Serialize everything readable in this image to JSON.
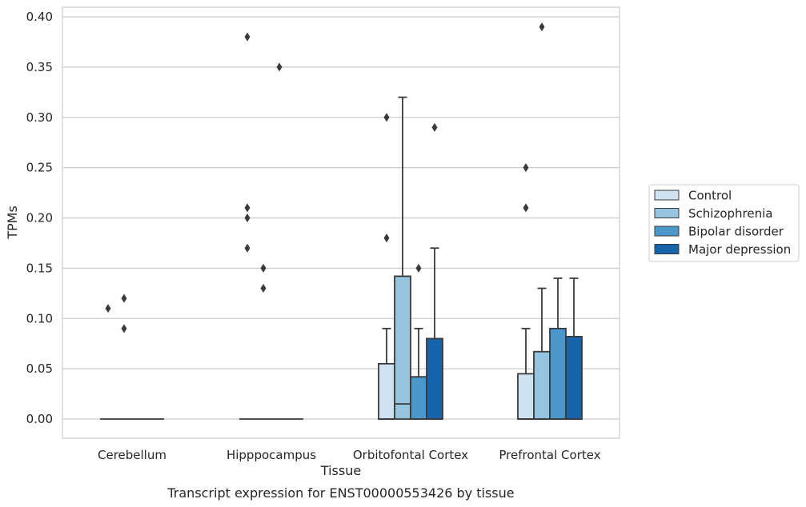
{
  "chart_data": {
    "type": "box",
    "xlabel": "Tissue",
    "ylabel": "TPMs",
    "caption": "Transcript expression for ENST00000553426 by tissue",
    "categories": [
      "Cerebellum",
      "Hipppocampus",
      "Orbitofontal Cortex",
      "Prefrontal Cortex"
    ],
    "ylim": [
      -0.02,
      0.41
    ],
    "yticks": [
      "0.00",
      "0.05",
      "0.10",
      "0.15",
      "0.20",
      "0.25",
      "0.30",
      "0.35",
      "0.40"
    ],
    "grid": "horizontal",
    "legend_position": "right",
    "colors": [
      "#d0e1f2",
      "#94c4df",
      "#4a98c9",
      "#1764ab"
    ],
    "series": [
      {
        "name": "Control",
        "boxes": [
          {
            "q1": 0,
            "median": 0,
            "q3": 0,
            "whisker_low": 0,
            "whisker_high": 0,
            "outliers": [
              0.11
            ]
          },
          {
            "q1": 0,
            "median": 0,
            "q3": 0,
            "whisker_low": 0,
            "whisker_high": 0,
            "outliers": [
              0.21,
              0.2,
              0.17,
              0.38
            ]
          },
          {
            "q1": 0,
            "median": 0,
            "q3": 0.055,
            "whisker_low": 0,
            "whisker_high": 0.09,
            "outliers": [
              0.3,
              0.18
            ]
          },
          {
            "q1": 0,
            "median": 0,
            "q3": 0.045,
            "whisker_low": 0,
            "whisker_high": 0.09,
            "outliers": [
              0.25,
              0.21
            ]
          }
        ]
      },
      {
        "name": "Schizophrenia",
        "boxes": [
          {
            "q1": 0,
            "median": 0,
            "q3": 0,
            "whisker_low": 0,
            "whisker_high": 0,
            "outliers": [
              0.12,
              0.09
            ]
          },
          {
            "q1": 0,
            "median": 0,
            "q3": 0,
            "whisker_low": 0,
            "whisker_high": 0,
            "outliers": [
              0.15,
              0.13
            ]
          },
          {
            "q1": 0,
            "median": 0.015,
            "q3": 0.142,
            "whisker_low": 0,
            "whisker_high": 0.32,
            "outliers": []
          },
          {
            "q1": 0,
            "median": 0,
            "q3": 0.067,
            "whisker_low": 0,
            "whisker_high": 0.13,
            "outliers": [
              0.39
            ]
          }
        ]
      },
      {
        "name": "Bipolar disorder",
        "boxes": [
          {
            "q1": 0,
            "median": 0,
            "q3": 0,
            "whisker_low": 0,
            "whisker_high": 0,
            "outliers": []
          },
          {
            "q1": 0,
            "median": 0,
            "q3": 0,
            "whisker_low": 0,
            "whisker_high": 0,
            "outliers": [
              0.35
            ]
          },
          {
            "q1": 0,
            "median": 0,
            "q3": 0.042,
            "whisker_low": 0,
            "whisker_high": 0.09,
            "outliers": [
              0.15
            ]
          },
          {
            "q1": 0,
            "median": 0,
            "q3": 0.09,
            "whisker_low": 0,
            "whisker_high": 0.14,
            "outliers": []
          }
        ]
      },
      {
        "name": "Major depression",
        "boxes": [
          {
            "q1": 0,
            "median": 0,
            "q3": 0,
            "whisker_low": 0,
            "whisker_high": 0,
            "outliers": []
          },
          {
            "q1": 0,
            "median": 0,
            "q3": 0,
            "whisker_low": 0,
            "whisker_high": 0,
            "outliers": []
          },
          {
            "q1": 0,
            "median": 0,
            "q3": 0.08,
            "whisker_low": 0,
            "whisker_high": 0.17,
            "outliers": [
              0.29
            ]
          },
          {
            "q1": 0,
            "median": 0,
            "q3": 0.082,
            "whisker_low": 0,
            "whisker_high": 0.14,
            "outliers": []
          }
        ]
      }
    ]
  }
}
